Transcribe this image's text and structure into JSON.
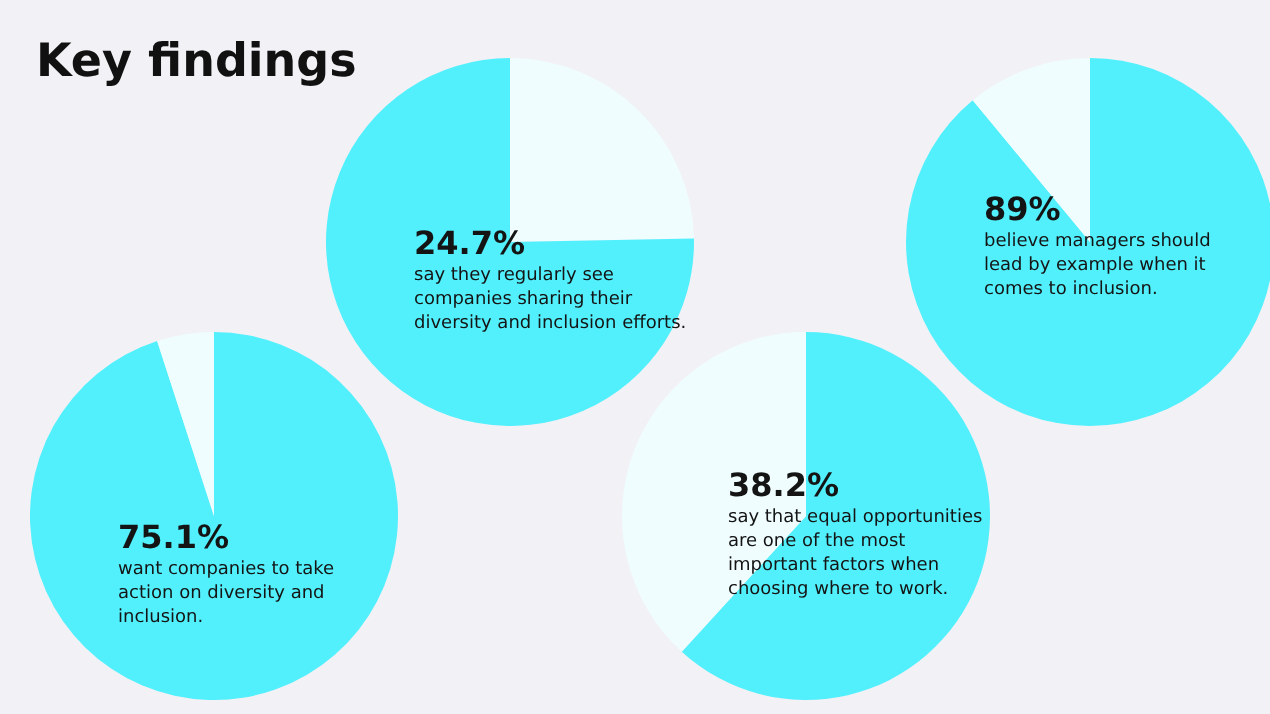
{
  "chart_data": [
    {
      "type": "pie",
      "title": "Key findings",
      "categories": [
        null,
        null
      ],
      "values": [
        24.7,
        75.3
      ],
      "colors": [
        "#effdff",
        "#52f0fc"
      ],
      "annotations": [
        "24.7%",
        "say they regularly see companies sharing their diversity and inclusion efforts."
      ]
    },
    {
      "type": "pie",
      "categories": [
        null,
        null
      ],
      "values": [
        89,
        11
      ],
      "colors": [
        "#52f0fc",
        "#effdff"
      ],
      "annotations": [
        "89%",
        "believe managers should lead by example when it comes to inclusion."
      ]
    },
    {
      "type": "pie",
      "categories": [
        null,
        null
      ],
      "values": [
        61.8,
        38.2
      ],
      "colors": [
        "#52f0fc",
        "#effdff"
      ],
      "annotations": [
        "38.2%",
        "say that equal opportunities are one of the most important factors when choosing where to work."
      ]
    },
    {
      "type": "pie",
      "categories": [
        null,
        null
      ],
      "values": [
        95,
        5
      ],
      "colors": [
        "#52f0fc",
        "#effdff"
      ],
      "annotations": [
        "75.1%",
        "want companies to take action on diversity and inclusion."
      ]
    }
  ]
}
